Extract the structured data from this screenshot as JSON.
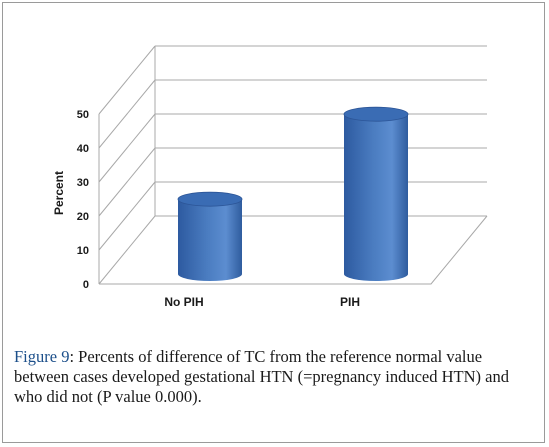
{
  "chart_data": {
    "type": "bar",
    "title": "",
    "xlabel": "",
    "ylabel": "Percent",
    "categories": [
      "No PIH",
      "PIH"
    ],
    "values": [
      22,
      47
    ],
    "ylim": [
      0,
      50
    ],
    "yticks": [
      0,
      10,
      20,
      30,
      40,
      50
    ],
    "grid": true,
    "three_d": true,
    "bar_color": "#4a7cc0"
  },
  "caption": {
    "label": "Figure 9",
    "text": ": Percents of difference of TC from the reference normal value between cases developed gestational HTN (=pregnancy induced HTN) and who did not (P value 0.000)."
  },
  "colors": {
    "frame_border": "#9a9a9a",
    "grid": "#a8a8a8",
    "axis_text": "#1a1a1a",
    "caption_label": "#1c4f8a"
  }
}
